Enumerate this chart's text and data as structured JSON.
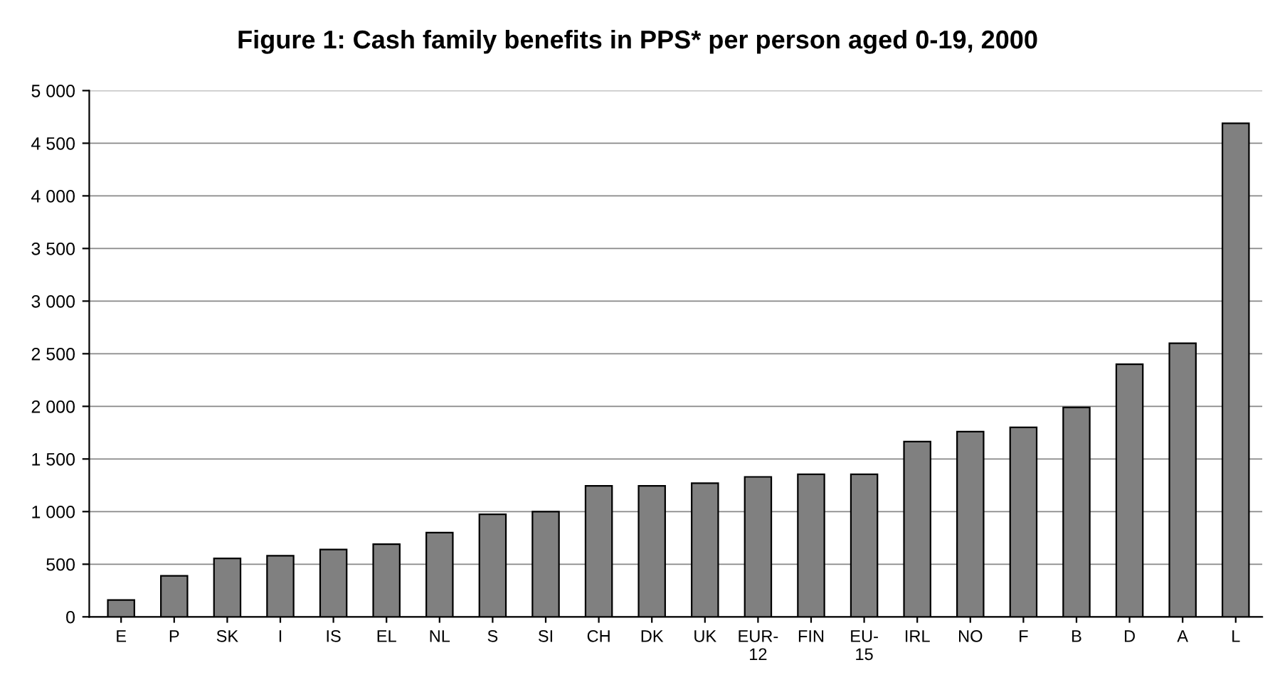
{
  "chart_data": {
    "type": "bar",
    "title": "Figure 1: Cash family benefits in PPS* per person aged 0-19, 2000",
    "categories": [
      "E",
      "P",
      "SK",
      "I",
      "IS",
      "EL",
      "NL",
      "S",
      "SI",
      "CH",
      "DK",
      "UK",
      "EUR-\n12",
      "FIN",
      "EU-\n15",
      "IRL",
      "NO",
      "F",
      "B",
      "D",
      "A",
      "L"
    ],
    "values": [
      160,
      390,
      555,
      580,
      640,
      690,
      800,
      975,
      1000,
      1245,
      1245,
      1270,
      1330,
      1355,
      1355,
      1665,
      1760,
      1800,
      1990,
      2400,
      2600,
      4690
    ],
    "color": "#808080",
    "ylim": [
      0,
      5000
    ],
    "yticks": [
      {
        "value": 0,
        "label": "0"
      },
      {
        "value": 500,
        "label": "500"
      },
      {
        "value": 1000,
        "label": "1 000"
      },
      {
        "value": 1500,
        "label": "1 500"
      },
      {
        "value": 2000,
        "label": "2 000"
      },
      {
        "value": 2500,
        "label": "2 500"
      },
      {
        "value": 3000,
        "label": "3 000"
      },
      {
        "value": 3500,
        "label": "3 500"
      },
      {
        "value": 4000,
        "label": "4 000"
      },
      {
        "value": 4500,
        "label": "4 500"
      },
      {
        "value": 5000,
        "label": "5 000"
      }
    ],
    "grid": "y"
  }
}
